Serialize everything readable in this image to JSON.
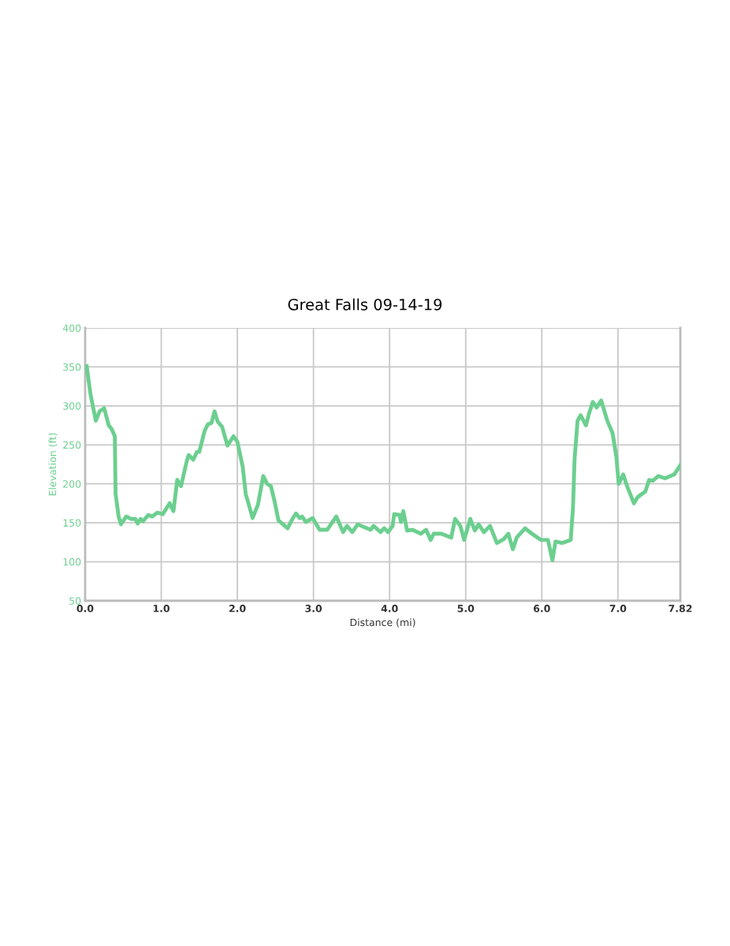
{
  "chart_data": {
    "type": "line",
    "title": "Great Falls 09-14-19",
    "xlabel": "Distance (mi)",
    "ylabel": "Elevation (ft)",
    "xlim": [
      0,
      7.82
    ],
    "xticks": [
      {
        "value": 0,
        "label": "0.0"
      },
      {
        "value": 1,
        "label": "1.0"
      },
      {
        "value": 2,
        "label": "2.0"
      },
      {
        "value": 3,
        "label": "3.0"
      },
      {
        "value": 4,
        "label": "4.0"
      },
      {
        "value": 5,
        "label": "5.0"
      },
      {
        "value": 6,
        "label": "6.0"
      },
      {
        "value": 7,
        "label": "7.0"
      },
      7.82
    ],
    "ylim": [
      50,
      400
    ],
    "yticks": [
      50,
      100,
      150,
      200,
      250,
      300,
      350,
      400
    ],
    "grid": true,
    "marker": "none",
    "line_style": "solid",
    "series": [
      {
        "color": "#6ccf8f",
        "x": [
          0.02,
          0.07,
          0.14,
          0.19,
          0.25,
          0.31,
          0.35,
          0.39,
          0.4,
          0.44,
          0.47,
          0.54,
          0.6,
          0.66,
          0.69,
          0.73,
          0.76,
          0.83,
          0.88,
          0.95,
          1.02,
          1.11,
          1.16,
          1.21,
          1.26,
          1.33,
          1.36,
          1.42,
          1.47,
          1.5,
          1.57,
          1.61,
          1.66,
          1.7,
          1.74,
          1.8,
          1.87,
          1.95,
          2.0,
          2.07,
          2.11,
          2.16,
          2.2,
          2.27,
          2.34,
          2.39,
          2.44,
          2.49,
          2.54,
          2.66,
          2.73,
          2.77,
          2.82,
          2.85,
          2.9,
          2.99,
          3.08,
          3.18,
          3.3,
          3.39,
          3.44,
          3.51,
          3.58,
          3.75,
          3.79,
          3.88,
          3.93,
          3.98,
          4.04,
          4.06,
          4.13,
          4.15,
          4.18,
          4.23,
          4.3,
          4.41,
          4.48,
          4.54,
          4.58,
          4.68,
          4.81,
          4.86,
          4.93,
          4.98,
          5.06,
          5.12,
          5.17,
          5.24,
          5.32,
          5.41,
          5.5,
          5.56,
          5.62,
          5.67,
          5.78,
          5.87,
          5.99,
          6.08,
          6.14,
          6.18,
          6.27,
          6.38,
          6.41,
          6.43,
          6.47,
          6.51,
          6.58,
          6.62,
          6.67,
          6.72,
          6.78,
          6.86,
          6.93,
          6.98,
          7.01,
          7.07,
          7.12,
          7.21,
          7.26,
          7.36,
          7.41,
          7.46,
          7.53,
          7.62,
          7.74,
          7.82
        ],
        "values": [
          351,
          315,
          281,
          293,
          297,
          275,
          270,
          261,
          187,
          158,
          148,
          158,
          155,
          155,
          149,
          155,
          152,
          160,
          158,
          163,
          161,
          175,
          165,
          205,
          197,
          227,
          237,
          231,
          241,
          241,
          268,
          276,
          278,
          293,
          280,
          273,
          249,
          261,
          254,
          222,
          187,
          170,
          156,
          173,
          210,
          200,
          197,
          177,
          153,
          143,
          156,
          162,
          156,
          158,
          151,
          156,
          141,
          141,
          158,
          138,
          146,
          138,
          148,
          141,
          146,
          138,
          143,
          138,
          146,
          161,
          160,
          151,
          165,
          140,
          141,
          136,
          141,
          128,
          136,
          136,
          131,
          155,
          146,
          128,
          155,
          140,
          148,
          138,
          146,
          124,
          129,
          136,
          116,
          131,
          143,
          136,
          128,
          128,
          102,
          126,
          124,
          128,
          170,
          231,
          281,
          288,
          275,
          290,
          305,
          298,
          307,
          281,
          265,
          234,
          200,
          212,
          197,
          175,
          183,
          190,
          205,
          204,
          210,
          207,
          212,
          224
        ]
      }
    ]
  }
}
